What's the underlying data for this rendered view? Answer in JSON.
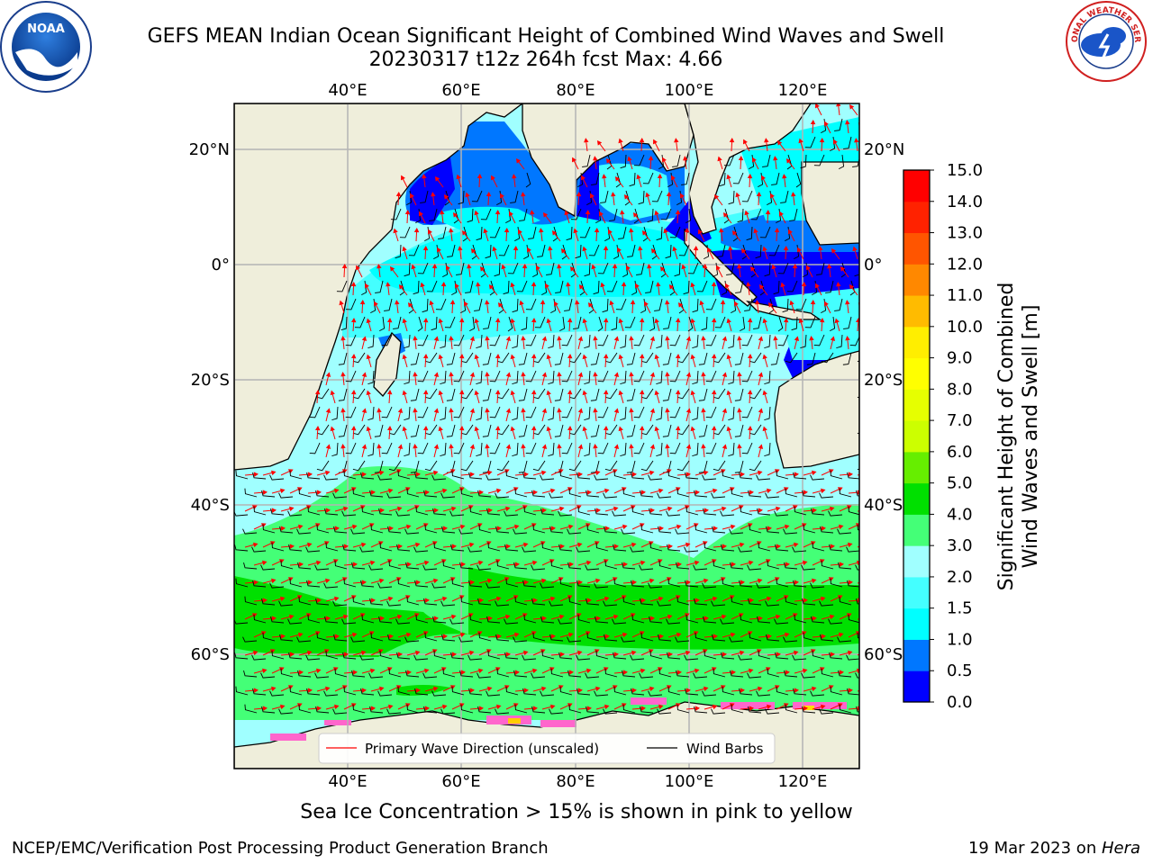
{
  "title": {
    "line1": "GEFS MEAN Indian Ocean Significant Height of Combined Wind Waves and Swell",
    "line2": "20230317 t12z 264h fcst   Max: 4.66"
  },
  "map": {
    "lon_labels": [
      "40°E",
      "60°E",
      "80°E",
      "100°E",
      "120°E"
    ],
    "lat_labels_left": [
      "20°N",
      "0°",
      "20°S",
      "40°S",
      "60°S"
    ],
    "lat_labels_right": [
      "20°N",
      "0°",
      "20°S",
      "40°S",
      "60°S"
    ],
    "colors": {
      "land": "#efeedb",
      "grid": "#b4b4b4",
      "arrow": "#ff0000",
      "barb": "#000000",
      "ice": "#ff66cc"
    }
  },
  "legend": {
    "wave_direction": "Primary Wave Direction (unscaled)",
    "wind_barbs": "Wind Barbs"
  },
  "colorbar": {
    "label_line1": "Significant Height of Combined",
    "label_line2": "Wind Waves and Swell [m]",
    "ticks": [
      "0.0",
      "0.5",
      "1.0",
      "1.5",
      "2.0",
      "3.0",
      "4.0",
      "5.0",
      "6.0",
      "7.0",
      "8.0",
      "9.0",
      "10.0",
      "11.0",
      "12.0",
      "13.0",
      "14.0",
      "15.0"
    ],
    "colors": [
      "#0000ff",
      "#0077ff",
      "#00ffff",
      "#44ffff",
      "#a0ffff",
      "#44ff77",
      "#00e000",
      "#66ee00",
      "#ccff00",
      "#e6ff00",
      "#ffff00",
      "#ffee00",
      "#ffbb00",
      "#ff8800",
      "#ff5500",
      "#ff2200",
      "#ff0000"
    ]
  },
  "subcaption": "Sea Ice Concentration > 15% is shown in pink to yellow",
  "footer": {
    "left": "NCEP/EMC/Verification Post Processing Product Generation Branch",
    "right_date": "19 Mar 2023 on ",
    "right_host": "Hera"
  },
  "logos": {
    "left": "NOAA",
    "right": "NATIONAL WEATHER SERVICE"
  }
}
